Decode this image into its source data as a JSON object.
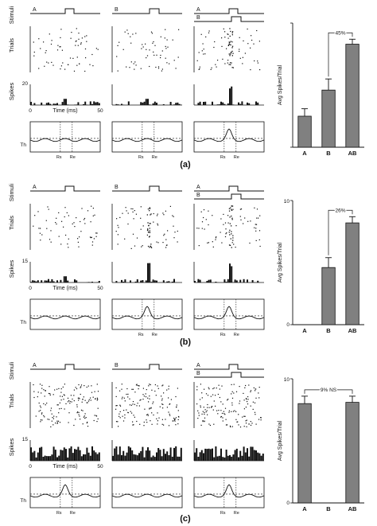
{
  "figure": {
    "stimuli_label": "Stimuli",
    "trials_label": "Trials",
    "spikes_label": "Spikes",
    "time_label": "Time (ms)",
    "time_ticks": [
      "0",
      "50"
    ],
    "threshold_label": "Th",
    "rs_label": "Rs",
    "re_label": "Re",
    "stimulus_a": "A",
    "stimulus_b": "B",
    "colors": {
      "ink": "#111111",
      "bar_fill": "#808080"
    }
  },
  "panels": [
    {
      "id": "a",
      "caption": "(a)",
      "spike_ytick": "20",
      "columns": [
        {
          "stimuli": [
            "A"
          ],
          "rs_re_shown": true,
          "raster_density": "sparse",
          "column_band": false
        },
        {
          "stimuli": [
            "B"
          ],
          "rs_re_shown": true,
          "raster_density": "sparse",
          "column_band": false
        },
        {
          "stimuli": [
            "A",
            "B"
          ],
          "rs_re_shown": true,
          "raster_density": "sparse",
          "column_band": true
        }
      ]
    },
    {
      "id": "b",
      "caption": "(b)",
      "spike_ytick": "15",
      "columns": [
        {
          "stimuli": [
            "A"
          ],
          "rs_re_shown": false,
          "raster_density": "sparse",
          "column_band": false
        },
        {
          "stimuli": [
            "B"
          ],
          "rs_re_shown": true,
          "raster_density": "sparse",
          "column_band": true
        },
        {
          "stimuli": [
            "A",
            "B"
          ],
          "rs_re_shown": true,
          "raster_density": "sparse",
          "column_band": true
        }
      ]
    },
    {
      "id": "c",
      "caption": "(c)",
      "spike_ytick": "15",
      "columns": [
        {
          "stimuli": [
            "A"
          ],
          "rs_re_shown": true,
          "raster_density": "dense",
          "column_band": false
        },
        {
          "stimuli": [
            "B"
          ],
          "rs_re_shown": false,
          "raster_density": "dense",
          "column_band": false
        },
        {
          "stimuli": [
            "A",
            "B"
          ],
          "rs_re_shown": true,
          "raster_density": "dense",
          "column_band": false
        }
      ]
    }
  ],
  "chart_data": [
    {
      "type": "bar",
      "categories": [
        "A",
        "B",
        "AB"
      ],
      "values": [
        2.5,
        4.6,
        8.3
      ],
      "errors": [
        0.6,
        0.9,
        0.4
      ],
      "ylabel": "Avg Spikes/Trial",
      "ylim": [
        0,
        10
      ],
      "yticks": [],
      "annotation": "45%",
      "annotation_between": [
        "B",
        "AB"
      ]
    },
    {
      "type": "bar",
      "categories": [
        "A",
        "B",
        "AB"
      ],
      "values": [
        0,
        4.6,
        8.2
      ],
      "errors": [
        0,
        0.8,
        0.5
      ],
      "ylabel": "Avg Spikes/Trial",
      "ylim": [
        0,
        10
      ],
      "yticks": [
        "0",
        "10"
      ],
      "annotation": "26%",
      "annotation_between": [
        "B",
        "AB"
      ]
    },
    {
      "type": "bar",
      "categories": [
        "A",
        "B",
        "AB"
      ],
      "values": [
        8.0,
        0,
        8.1
      ],
      "errors": [
        0.6,
        0,
        0.5
      ],
      "ylabel": "Avg Spikes/Trial",
      "ylim": [
        0,
        10
      ],
      "yticks": [
        "0",
        "10"
      ],
      "annotation": "9% NS",
      "annotation_between": [
        "A",
        "AB"
      ]
    }
  ]
}
